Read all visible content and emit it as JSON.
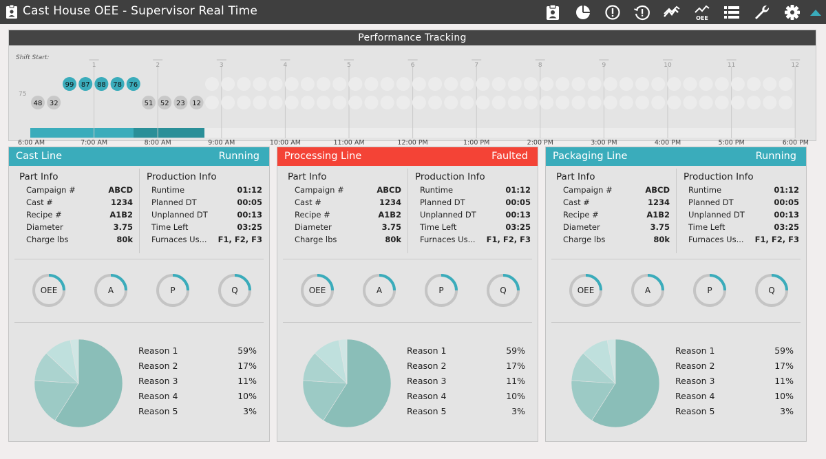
{
  "app": {
    "title": "Cast House OEE - Supervisor Real Time"
  },
  "toolbar": {
    "icons": [
      "clipboard-badge-icon",
      "pie-chart-icon",
      "alert-circle-icon",
      "history-alert-icon",
      "trend-icon",
      "oee-chart-icon",
      "list-view-icon",
      "wrench-icon",
      "settings-icon",
      "collapse-up-icon"
    ],
    "oee_icon_label": "OEE"
  },
  "colors": {
    "teal": "#3aacbb",
    "teal_dark": "#2a8f98",
    "faulted": "#f44336",
    "running": "#3aacbb",
    "gauge_track": "#c4c4c4",
    "pie": [
      "#8abeb8",
      "#9ccac5",
      "#abd3cf",
      "#bfe0dd",
      "#cfe6e4"
    ]
  },
  "performance": {
    "title": "Performance Tracking",
    "shift_start_label": "Shift Start:",
    "y_marker": "75",
    "hour_ticks": [
      "1",
      "2",
      "3",
      "4",
      "5",
      "6",
      "7",
      "8",
      "9",
      "10",
      "11",
      "12"
    ],
    "time_labels": [
      "6:00 AM",
      "7:00 AM",
      "8:00 AM",
      "9:00 AM",
      "10:00 AM",
      "11:00 AM",
      "12:00 PM",
      "1:00 PM",
      "2:00 PM",
      "3:00 PM",
      "4:00 PM",
      "5:00 PM",
      "6:00 PM"
    ],
    "top_row_values": [
      "99",
      "87",
      "88",
      "78",
      "76"
    ],
    "bottom_row_left": [
      "48",
      "32"
    ],
    "bottom_row_right": [
      "51",
      "52",
      "23",
      "12"
    ]
  },
  "lines": [
    {
      "name": "Cast Line",
      "status": "Running",
      "state": "running",
      "part_info_title": "Part Info",
      "production_info_title": "Production Info",
      "part_info": [
        {
          "label": "Campaign #",
          "value": "ABCD"
        },
        {
          "label": "Cast #",
          "value": "1234"
        },
        {
          "label": "Recipe #",
          "value": "A1B2"
        },
        {
          "label": "Diameter",
          "value": "3.75"
        },
        {
          "label": "Charge lbs",
          "value": "80k"
        }
      ],
      "production_info": [
        {
          "label": "Runtime",
          "value": "01:12"
        },
        {
          "label": "Planned DT",
          "value": "00:05"
        },
        {
          "label": "Unplanned DT",
          "value": "00:13"
        },
        {
          "label": "Time Left",
          "value": "03:25"
        },
        {
          "label": "Furnaces Us...",
          "value": "F1, F2, F3"
        }
      ],
      "gauges": [
        {
          "label": "OEE",
          "fraction": 0.25
        },
        {
          "label": "A",
          "fraction": 0.25
        },
        {
          "label": "P",
          "fraction": 0.25
        },
        {
          "label": "Q",
          "fraction": 0.25
        }
      ],
      "reasons": [
        {
          "label": "Reason 1",
          "value": "59%",
          "pct": 59
        },
        {
          "label": "Reason 2",
          "value": "17%",
          "pct": 17
        },
        {
          "label": "Reason 3",
          "value": "11%",
          "pct": 11
        },
        {
          "label": "Reason 4",
          "value": "10%",
          "pct": 10
        },
        {
          "label": "Reason 5",
          "value": "3%",
          "pct": 3
        }
      ]
    },
    {
      "name": "Processing Line",
      "status": "Faulted",
      "state": "faulted",
      "part_info_title": "Part Info",
      "production_info_title": "Production Info",
      "part_info": [
        {
          "label": "Campaign #",
          "value": "ABCD"
        },
        {
          "label": "Cast #",
          "value": "1234"
        },
        {
          "label": "Recipe #",
          "value": "A1B2"
        },
        {
          "label": "Diameter",
          "value": "3.75"
        },
        {
          "label": "Charge lbs",
          "value": "80k"
        }
      ],
      "production_info": [
        {
          "label": "Runtime",
          "value": "01:12"
        },
        {
          "label": "Planned DT",
          "value": "00:05"
        },
        {
          "label": "Unplanned DT",
          "value": "00:13"
        },
        {
          "label": "Time Left",
          "value": "03:25"
        },
        {
          "label": "Furnaces Us...",
          "value": "F1, F2, F3"
        }
      ],
      "gauges": [
        {
          "label": "OEE",
          "fraction": 0.25
        },
        {
          "label": "A",
          "fraction": 0.25
        },
        {
          "label": "P",
          "fraction": 0.25
        },
        {
          "label": "Q",
          "fraction": 0.25
        }
      ],
      "reasons": [
        {
          "label": "Reason 1",
          "value": "59%",
          "pct": 59
        },
        {
          "label": "Reason 2",
          "value": "17%",
          "pct": 17
        },
        {
          "label": "Reason 3",
          "value": "11%",
          "pct": 11
        },
        {
          "label": "Reason 4",
          "value": "10%",
          "pct": 10
        },
        {
          "label": "Reason 5",
          "value": "3%",
          "pct": 3
        }
      ]
    },
    {
      "name": "Packaging Line",
      "status": "Running",
      "state": "running",
      "part_info_title": "Part Info",
      "production_info_title": "Production Info",
      "part_info": [
        {
          "label": "Campaign #",
          "value": "ABCD"
        },
        {
          "label": "Cast #",
          "value": "1234"
        },
        {
          "label": "Recipe #",
          "value": "A1B2"
        },
        {
          "label": "Diameter",
          "value": "3.75"
        },
        {
          "label": "Charge lbs",
          "value": "80k"
        }
      ],
      "production_info": [
        {
          "label": "Runtime",
          "value": "01:12"
        },
        {
          "label": "Planned DT",
          "value": "00:05"
        },
        {
          "label": "Unplanned DT",
          "value": "00:13"
        },
        {
          "label": "Time Left",
          "value": "03:25"
        },
        {
          "label": "Furnaces Us...",
          "value": "F1, F2, F3"
        }
      ],
      "gauges": [
        {
          "label": "OEE",
          "fraction": 0.25
        },
        {
          "label": "A",
          "fraction": 0.25
        },
        {
          "label": "P",
          "fraction": 0.25
        },
        {
          "label": "Q",
          "fraction": 0.25
        }
      ],
      "reasons": [
        {
          "label": "Reason 1",
          "value": "59%",
          "pct": 59
        },
        {
          "label": "Reason 2",
          "value": "17%",
          "pct": 17
        },
        {
          "label": "Reason 3",
          "value": "11%",
          "pct": 11
        },
        {
          "label": "Reason 4",
          "value": "10%",
          "pct": 10
        },
        {
          "label": "Reason 5",
          "value": "3%",
          "pct": 3
        }
      ]
    }
  ]
}
